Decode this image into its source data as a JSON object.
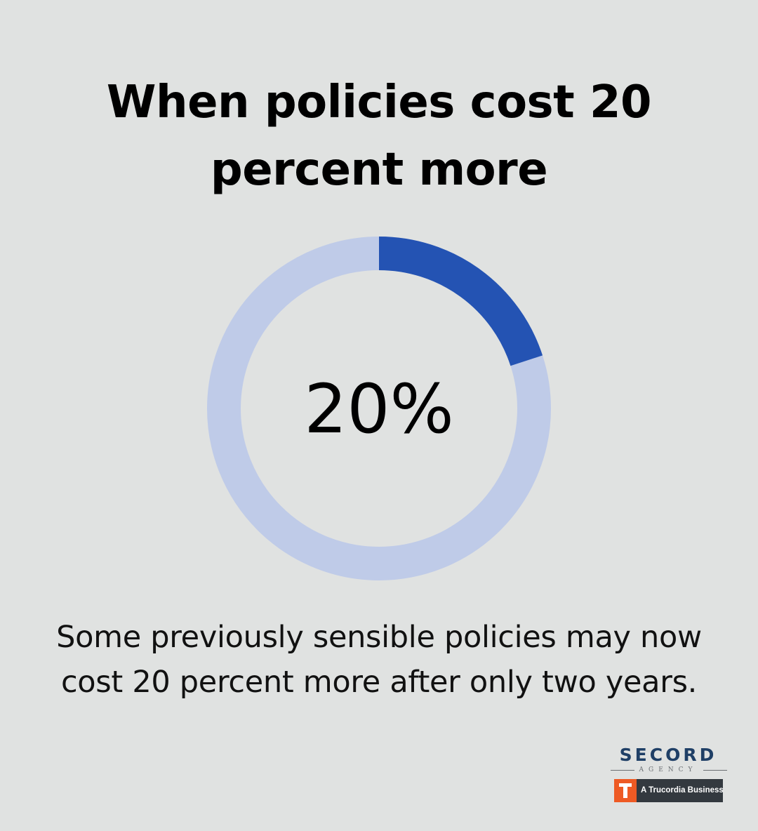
{
  "title": "When policies cost 20 percent more",
  "caption": "Some previously sensible policies may now cost 20 percent more after only two years.",
  "chart_data": {
    "type": "donut",
    "value": 20,
    "max": 100,
    "center_label": "20%",
    "colors": {
      "filled": "#2453b3",
      "remaining": "#bfcbe8",
      "label": "#000000"
    }
  },
  "branding": {
    "agency_name": "SECORD",
    "agency_sub": "AGENCY",
    "badge_text": "A Trucordia Business",
    "badge_icon": "trucordia-t-icon",
    "colors": {
      "agency_name": "#1f3f66",
      "badge_bg": "#33393f",
      "badge_mark": "#ee5a24"
    }
  }
}
